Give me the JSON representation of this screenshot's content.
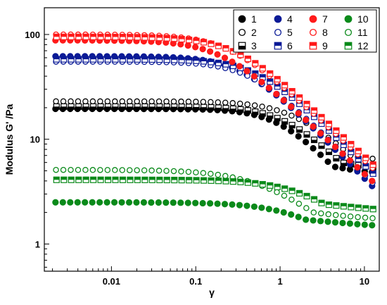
{
  "chart_data": {
    "type": "scatter",
    "title": "",
    "xlabel": "γ",
    "ylabel": "Modulus G' /Pa",
    "xscale": "log",
    "yscale": "log",
    "xlim": [
      0.0016,
      15
    ],
    "ylim": [
      0.55,
      180
    ],
    "x_ticks": [
      0.01,
      0.1,
      1,
      10
    ],
    "x_tick_labels": [
      "0.01",
      "0.1",
      "1",
      "10"
    ],
    "y_ticks": [
      1,
      10,
      100
    ],
    "y_tick_labels": [
      "1",
      "10",
      "100"
    ],
    "grid": false,
    "legend": {
      "placement": "top-right",
      "columns": 4
    },
    "x_range": {
      "start": 0.0022,
      "end": 12.5,
      "points": 44
    },
    "colors": {
      "black": "#000000",
      "navy": "#0a1a96",
      "red": "#ff1a1a",
      "green": "#0a8a1a"
    },
    "series": [
      {
        "name": "1",
        "color": "#000000",
        "marker": "filled",
        "plateau": 19.5,
        "knee": 1.0,
        "sharp": 1.7,
        "end": 5.5
      },
      {
        "name": "2",
        "color": "#000000",
        "marker": "open",
        "plateau": 23,
        "knee": 1.5,
        "sharp": 1.5,
        "end": 7.0
      },
      {
        "name": "3",
        "color": "#000000",
        "marker": "halfdown",
        "plateau": 20.5,
        "knee": 1.2,
        "sharp": 1.6,
        "end": 6.0
      },
      {
        "name": "4",
        "color": "#0a1a96",
        "marker": "filled",
        "plateau": 62,
        "knee": 0.35,
        "sharp": 1.6,
        "end": 1.5
      },
      {
        "name": "5",
        "color": "#0a1a96",
        "marker": "open",
        "plateau": 55,
        "knee": 0.45,
        "sharp": 1.6,
        "end": 2.2
      },
      {
        "name": "6",
        "color": "#0a1a96",
        "marker": "halfup",
        "plateau": 58,
        "knee": 0.55,
        "sharp": 1.6,
        "end": 3.0
      },
      {
        "name": "7",
        "color": "#ff1a1a",
        "marker": "filled",
        "plateau": 88,
        "knee": 0.2,
        "sharp": 1.5,
        "end": 2.0
      },
      {
        "name": "8",
        "color": "#ff1a1a",
        "marker": "open",
        "plateau": 100,
        "knee": 0.25,
        "sharp": 1.5,
        "end": 2.5
      },
      {
        "name": "9",
        "color": "#ff1a1a",
        "marker": "halfup",
        "plateau": 95,
        "knee": 0.3,
        "sharp": 1.5,
        "end": 2.8
      },
      {
        "name": "10",
        "color": "#0a8a1a",
        "marker": "filled",
        "plateau": 2.5,
        "knee": 1.8,
        "sharp": 1.2,
        "end": 1.7
      },
      {
        "name": "11",
        "color": "#0a8a1a",
        "marker": "open",
        "plateau": 5.1,
        "knee": 0.6,
        "sharp": 1.2,
        "end": 2.0
      },
      {
        "name": "12",
        "color": "#0a8a1a",
        "marker": "halfup",
        "plateau": 4.1,
        "knee": 2.0,
        "sharp": 1.3,
        "end": 2.4
      }
    ]
  }
}
